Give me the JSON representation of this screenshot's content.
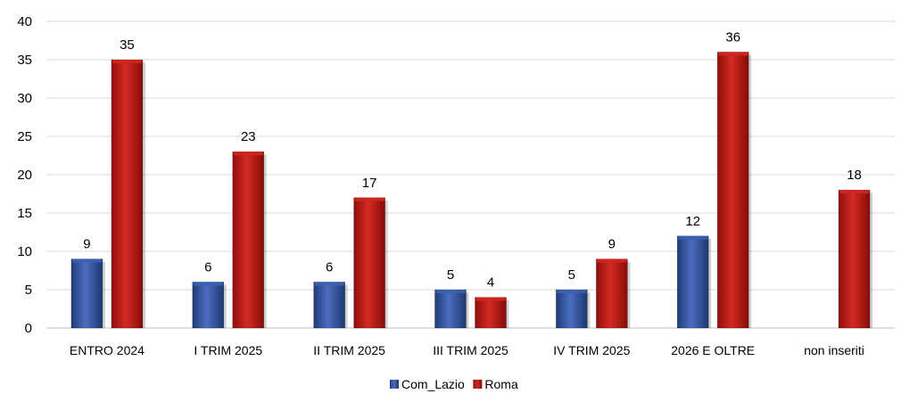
{
  "chart_data": {
    "type": "bar",
    "title": "",
    "xlabel": "",
    "ylabel": "",
    "ylim": [
      0,
      40
    ],
    "yticks": [
      0,
      5,
      10,
      15,
      20,
      25,
      30,
      35,
      40
    ],
    "grid": true,
    "legend_position": "bottom",
    "categories": [
      "ENTRO 2024",
      "I TRIM 2025",
      "II TRIM 2025",
      "III TRIM 2025",
      "IV TRIM 2025",
      "2026 E OLTRE",
      "non inseriti"
    ],
    "series": [
      {
        "name": "Com_Lazio",
        "color": "#2E4E96",
        "values": [
          9,
          6,
          6,
          5,
          5,
          12,
          null
        ]
      },
      {
        "name": "Roma",
        "color": "#B4140F",
        "values": [
          35,
          23,
          17,
          4,
          9,
          36,
          18
        ]
      }
    ]
  }
}
